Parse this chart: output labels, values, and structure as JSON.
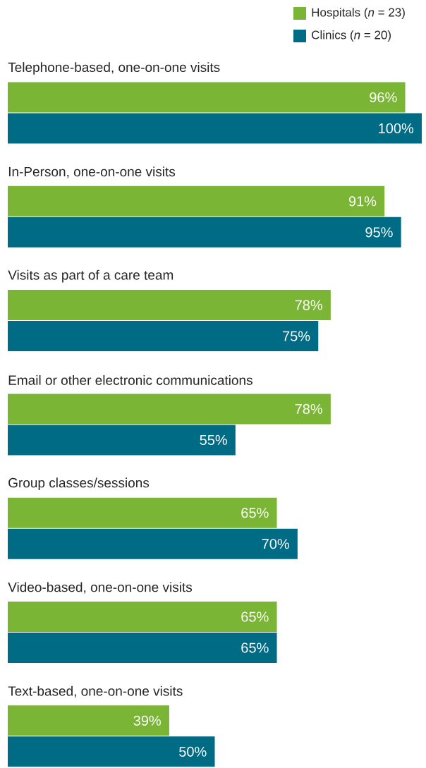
{
  "chart_data": {
    "type": "bar",
    "orientation": "horizontal",
    "legend": "top right",
    "categories": [
      "Telephone-based, one-on-one visits",
      "In-Person, one-on-one visits",
      "Visits as part of a care team",
      "Email or other electronic communications",
      "Group classes/sessions",
      "Video-based, one-on-one visits",
      "Text-based, one-on-one visits"
    ],
    "series": [
      {
        "name": "Hospitals (*n* = 23)",
        "color": "#7ab536",
        "values": [
          96,
          91,
          78,
          78,
          65,
          65,
          39
        ],
        "value_labels": [
          "96%",
          "91%",
          "78%",
          "78%",
          "65%",
          "65%",
          "39%"
        ]
      },
      {
        "name": "Clinics (*n* = 20)",
        "color": "#006b84",
        "values": [
          100,
          95,
          75,
          55,
          70,
          65,
          50
        ],
        "value_labels": [
          "100%",
          "95%",
          "75%",
          "55%",
          "70%",
          "65%",
          "50%"
        ]
      }
    ]
  }
}
